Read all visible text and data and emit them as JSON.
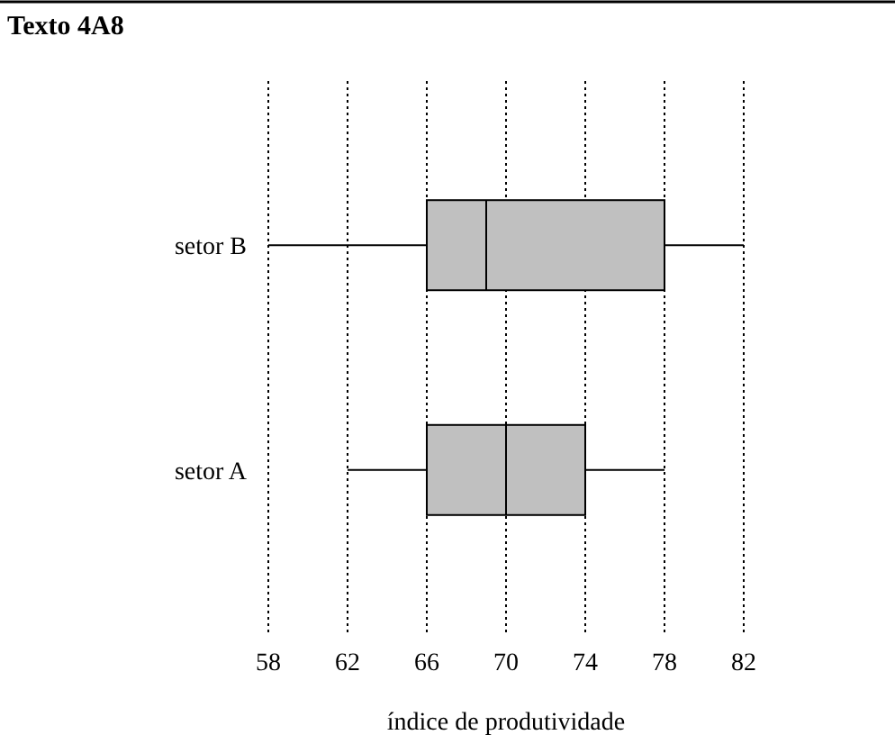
{
  "chart_data": {
    "type": "box",
    "title": "Texto 4A8",
    "orientation": "horizontal",
    "xlabel": "índice de produtividade",
    "categories": [
      "setor B",
      "setor A"
    ],
    "boxes": [
      {
        "low": 58,
        "q1": 66,
        "median": 69,
        "q3": 78,
        "high": 82
      },
      {
        "low": 62,
        "q1": 66,
        "median": 70,
        "q3": 74,
        "high": 78
      }
    ],
    "color": "#c0c0c0",
    "xlim": [
      58,
      82
    ],
    "xticks": [
      58,
      62,
      66,
      70,
      74,
      78,
      82
    ],
    "grid": "x"
  }
}
